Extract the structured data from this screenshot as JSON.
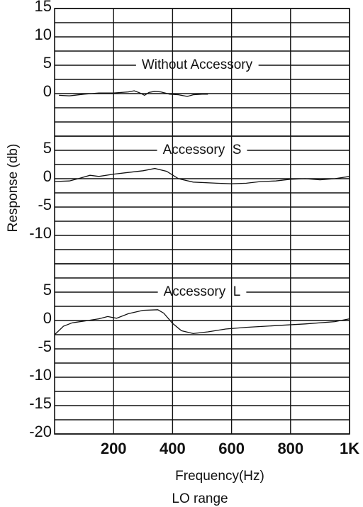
{
  "axes": {
    "xlim": [
      0,
      1000
    ],
    "xticks": [
      200,
      400,
      600,
      800,
      {
        "value": 1000,
        "label": "1K"
      }
    ],
    "xlabel": "Frequency(Hz)",
    "ylabel": "Response (db)",
    "note": "LO range"
  },
  "chart_data": [
    {
      "type": "line",
      "title": "Without Accessory",
      "ylim": [
        -7.5,
        15
      ],
      "yticks": [
        0,
        5,
        10,
        15
      ],
      "yticks_minor": [
        -7.5,
        -5,
        -2.5,
        2.5,
        7.5,
        12.5
      ],
      "color": "#111",
      "x": [
        15,
        50,
        100,
        150,
        200,
        250,
        270,
        290,
        305,
        320,
        340,
        360,
        390,
        420,
        450,
        470,
        500,
        520
      ],
      "values": [
        -0.3,
        -0.4,
        -0.1,
        0.1,
        0.1,
        0.3,
        0.5,
        0.1,
        -0.3,
        0.2,
        0.4,
        0.3,
        -0.1,
        -0.2,
        -0.5,
        -0.2,
        -0.1,
        -0.1
      ]
    },
    {
      "type": "line",
      "title": "Accessory  S",
      "ylim": [
        -15,
        7.5
      ],
      "yticks": [
        -10,
        -5,
        0,
        5
      ],
      "yticks_minor": [
        -15,
        -12.5,
        -7.5,
        -2.5,
        2.5,
        7.5
      ],
      "color": "#111",
      "x": [
        0,
        50,
        80,
        120,
        150,
        200,
        250,
        300,
        340,
        380,
        420,
        470,
        550,
        600,
        650,
        700,
        750,
        800,
        850,
        900,
        950,
        1000
      ],
      "values": [
        -0.5,
        -0.4,
        0,
        0.6,
        0.4,
        0.8,
        1.1,
        1.4,
        1.8,
        1.3,
        0,
        -0.6,
        -0.8,
        -0.9,
        -0.8,
        -0.5,
        -0.4,
        -0.1,
        0,
        -0.2,
        0,
        0.4
      ]
    },
    {
      "type": "line",
      "title": "Accessory  L",
      "ylim": [
        -20,
        10
      ],
      "yticks": [
        -20,
        -15,
        -10,
        -5,
        0,
        5
      ],
      "yticks_minor": [
        -17.5,
        -12.5,
        -7.5,
        -2.5,
        2.5,
        7.5,
        10
      ],
      "color": "#111",
      "x": [
        0,
        30,
        60,
        100,
        150,
        180,
        210,
        250,
        300,
        350,
        370,
        400,
        430,
        470,
        520,
        580,
        650,
        750,
        850,
        950,
        1000
      ],
      "values": [
        -2.5,
        -1,
        -0.4,
        -0.1,
        0.3,
        0.7,
        0.4,
        1.2,
        1.8,
        1.9,
        1.3,
        -0.5,
        -1.8,
        -2.3,
        -2.0,
        -1.5,
        -1.2,
        -0.9,
        -0.6,
        -0.2,
        0.3
      ]
    }
  ]
}
